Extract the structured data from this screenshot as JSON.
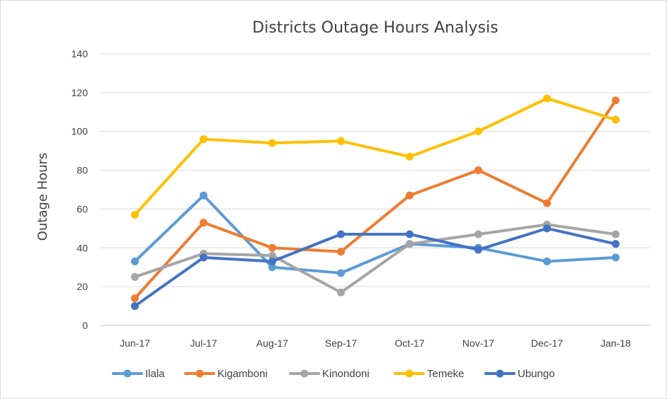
{
  "chart_data": {
    "type": "line",
    "title": "Districts Outage Hours Analysis",
    "xlabel": "",
    "ylabel": "Outage Hours",
    "categories": [
      "Jun-17",
      "Jul-17",
      "Aug-17",
      "Sep-17",
      "Oct-17",
      "Nov-17",
      "Dec-17",
      "Jan-18"
    ],
    "ylim": [
      0,
      140
    ],
    "yticks": [
      0,
      20,
      40,
      60,
      80,
      100,
      120,
      140
    ],
    "grid": true,
    "legend_position": "bottom",
    "series": [
      {
        "name": "Ilala",
        "color": "#5b9bd5",
        "values": [
          33,
          67,
          30,
          27,
          42,
          40,
          33,
          35
        ]
      },
      {
        "name": "Kigamboni",
        "color": "#ed7d31",
        "values": [
          14,
          53,
          40,
          38,
          67,
          80,
          63,
          116
        ]
      },
      {
        "name": "Kinondoni",
        "color": "#a5a5a5",
        "values": [
          25,
          37,
          36,
          17,
          42,
          47,
          52,
          47
        ]
      },
      {
        "name": "Temeke",
        "color": "#ffc000",
        "values": [
          57,
          96,
          94,
          95,
          87,
          100,
          117,
          106
        ]
      },
      {
        "name": "Ubungo",
        "color": "#4472c4",
        "values": [
          10,
          35,
          33,
          47,
          47,
          39,
          50,
          42
        ]
      }
    ]
  }
}
